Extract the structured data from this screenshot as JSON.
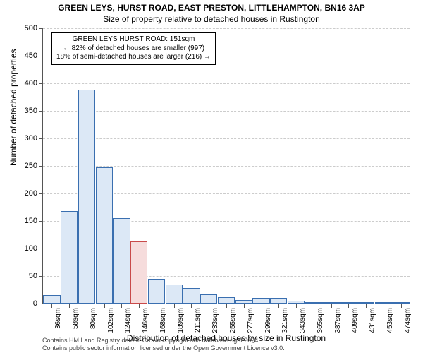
{
  "title_main": "GREEN LEYS, HURST ROAD, EAST PRESTON, LITTLEHAMPTON, BN16 3AP",
  "title_sub": "Size of property relative to detached houses in Rustington",
  "y_axis": {
    "label": "Number of detached properties",
    "min": 0,
    "max": 500,
    "step": 50
  },
  "x_axis": {
    "label": "Distribution of detached houses by size in Rustington",
    "tick_labels": [
      "36sqm",
      "58sqm",
      "80sqm",
      "102sqm",
      "124sqm",
      "146sqm",
      "168sqm",
      "189sqm",
      "211sqm",
      "233sqm",
      "255sqm",
      "277sqm",
      "299sqm",
      "321sqm",
      "343sqm",
      "365sqm",
      "387sqm",
      "409sqm",
      "431sqm",
      "453sqm",
      "474sqm"
    ]
  },
  "bars": {
    "values": [
      15,
      168,
      388,
      248,
      155,
      113,
      45,
      35,
      28,
      17,
      12,
      7,
      10,
      10,
      5,
      3,
      3,
      2,
      3,
      0,
      3
    ],
    "fill": "#dce8f6",
    "border": "#3a6fb0",
    "highlight_fill": "#f6dcdc",
    "highlight_border": "#c94a4a",
    "highlight_index": 5
  },
  "reference_line": {
    "fraction": 0.263,
    "color": "#c00000"
  },
  "annotation": {
    "line1": "GREEN LEYS HURST ROAD: 151sqm",
    "line2": "← 82% of detached houses are smaller (997)",
    "line3": "18% of semi-detached houses are larger (216) →"
  },
  "footer": {
    "line1": "Contains HM Land Registry data © Crown copyright and database right 2024.",
    "line2": "Contains public sector information licensed under the Open Government Licence v3.0."
  },
  "grid_color": "#cccccc",
  "background_color": "#ffffff"
}
